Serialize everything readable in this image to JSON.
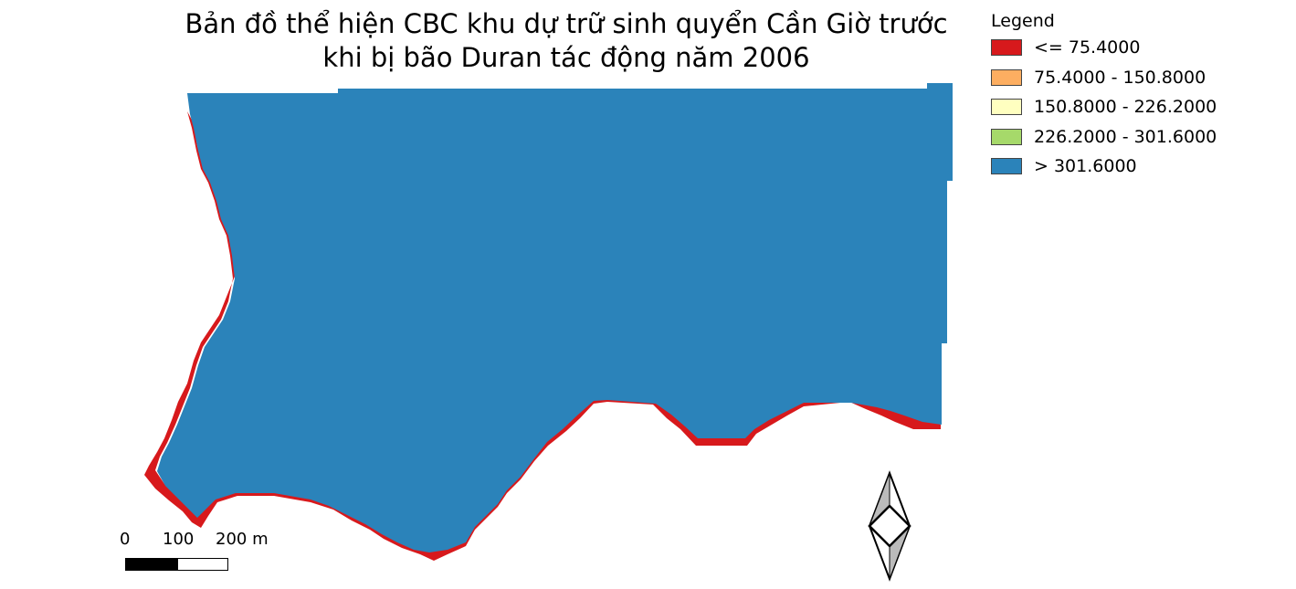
{
  "title": {
    "line1": "Bản đồ thể hiện CBC khu dự trữ sinh quyển Cần Giờ trước",
    "line2": "khi bị bão Duran tác động năm 2006"
  },
  "legend": {
    "title": "Legend",
    "items": [
      {
        "label": "<= 75.4000",
        "color": "#d7191c"
      },
      {
        "label": "75.4000 - 150.8000",
        "color": "#fdae61"
      },
      {
        "label": "150.8000 - 226.2000",
        "color": "#ffffc0"
      },
      {
        "label": "226.2000 - 301.6000",
        "color": "#a6d96a"
      },
      {
        "label": "> 301.6000",
        "color": "#2b83ba"
      }
    ]
  },
  "scale_bar": {
    "labels": [
      "0",
      "100",
      "200 m"
    ]
  },
  "colors": {
    "high_class": "#2b83ba",
    "low_class": "#d7191c"
  },
  "north_arrow": {
    "icon": "north-arrow-icon"
  }
}
